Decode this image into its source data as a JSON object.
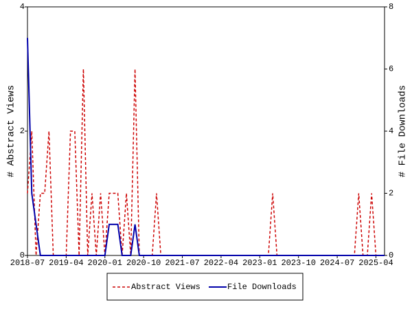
{
  "chart_data": {
    "type": "line",
    "categories": [
      "2018-07",
      null,
      null,
      null,
      null,
      null,
      null,
      null,
      null,
      "2019-04",
      null,
      null,
      null,
      null,
      null,
      null,
      null,
      null,
      "2020-01",
      null,
      null,
      null,
      null,
      null,
      null,
      null,
      null,
      "2020-10",
      null,
      null,
      null,
      null,
      null,
      null,
      null,
      null,
      "2021-07",
      null,
      null,
      null,
      null,
      null,
      null,
      null,
      null,
      "2022-04",
      null,
      null,
      null,
      null,
      null,
      null,
      null,
      null,
      "2023-01",
      null,
      null,
      null,
      null,
      null,
      null,
      null,
      null,
      "2023-10",
      null,
      null,
      null,
      null,
      null,
      null,
      null,
      null,
      "2024-07",
      null,
      null,
      null,
      null,
      null,
      null,
      null,
      null,
      "2025-04",
      null,
      null
    ],
    "y_label": "# Abstract Views",
    "y2_label": "# File Downloads",
    "ylim": [
      0,
      4
    ],
    "yticks": [
      0,
      2,
      4
    ],
    "y2lim": [
      0,
      8
    ],
    "y2ticks": [
      0,
      2,
      4,
      6,
      8
    ],
    "legend": "bottom",
    "series": [
      {
        "name": "Abstract Views",
        "color": "#cc0000",
        "dashed": true,
        "values": [
          1,
          2,
          0,
          1,
          1,
          2,
          0,
          0,
          0,
          0,
          2,
          2,
          0,
          3,
          0,
          1,
          0,
          1,
          0,
          1,
          1,
          1,
          0,
          1,
          0,
          3,
          0,
          0,
          0,
          0,
          1,
          0,
          0,
          0,
          0,
          0,
          0,
          0,
          0,
          0,
          0,
          0,
          0,
          0,
          0,
          0,
          0,
          0,
          0,
          0,
          0,
          0,
          0,
          0,
          0,
          0,
          0,
          1,
          0,
          0,
          0,
          0,
          0,
          0,
          0,
          0,
          0,
          0,
          0,
          0,
          0,
          0,
          0,
          0,
          0,
          0,
          0,
          1,
          0,
          0,
          1,
          0,
          0,
          0
        ]
      },
      {
        "name": "File Downloads",
        "color": "#0000aa",
        "axis": "y2",
        "values": [
          7,
          2,
          1,
          0,
          0,
          0,
          0,
          0,
          0,
          0,
          0,
          0,
          0,
          0,
          0,
          0,
          0,
          0,
          0,
          1,
          1,
          1,
          0,
          0,
          0,
          1,
          0,
          0,
          0,
          0,
          0,
          0,
          0,
          0,
          0,
          0,
          0,
          0,
          0,
          0,
          0,
          0,
          0,
          0,
          0,
          0,
          0,
          0,
          0,
          0,
          0,
          0,
          0,
          0,
          0,
          0,
          0,
          0,
          0,
          0,
          0,
          0,
          0,
          0,
          0,
          0,
          0,
          0,
          0,
          0,
          0,
          0,
          0,
          0,
          0,
          0,
          0,
          0,
          0,
          0,
          0,
          0,
          0,
          0
        ]
      }
    ]
  }
}
